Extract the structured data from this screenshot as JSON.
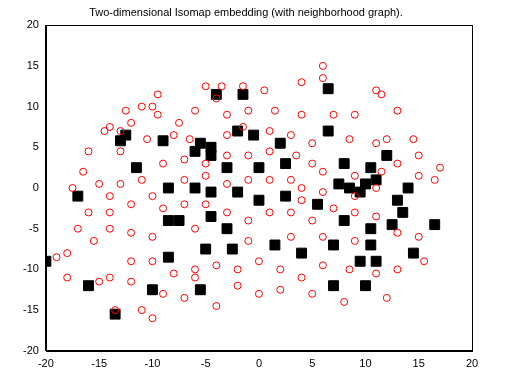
{
  "chart_data": {
    "type": "scatter",
    "title": "Two-dimensional Isomap embedding (with neighborhood graph).",
    "xlim": [
      -20,
      20
    ],
    "xticks": [
      -20,
      -15,
      -10,
      -5,
      0,
      5,
      10,
      15,
      20
    ],
    "ylim": [
      -20,
      20
    ],
    "yticks": [
      -20,
      -15,
      -10,
      -5,
      0,
      5,
      10,
      15,
      20
    ],
    "grid": false,
    "series": [
      {
        "color": "#ff0000",
        "marker": "circle",
        "values": [
          [
            6,
            15
          ],
          [
            4,
            13
          ],
          [
            6,
            13.5
          ],
          [
            11,
            12
          ],
          [
            11.5,
            11.5
          ],
          [
            -5,
            12.5
          ],
          [
            -3.5,
            12.5
          ],
          [
            -1.5,
            12.5
          ],
          [
            0.5,
            12
          ],
          [
            -4,
            11
          ],
          [
            -9.5,
            11.5
          ],
          [
            -10,
            10
          ],
          [
            -11,
            10
          ],
          [
            -12.5,
            9.5
          ],
          [
            -14,
            7.5
          ],
          [
            -14.5,
            7
          ],
          [
            -13,
            7
          ],
          [
            -12,
            8
          ],
          [
            -9.5,
            9
          ],
          [
            -7.5,
            8
          ],
          [
            -6,
            9.5
          ],
          [
            -3,
            9
          ],
          [
            -1,
            9.5
          ],
          [
            1.5,
            9.5
          ],
          [
            4,
            9
          ],
          [
            7,
            9
          ],
          [
            9,
            9
          ],
          [
            13,
            9.5
          ],
          [
            14.5,
            6
          ],
          [
            12,
            6
          ],
          [
            11,
            5.5
          ],
          [
            8.5,
            6
          ],
          [
            5,
            5.5
          ],
          [
            3,
            6.5
          ],
          [
            1,
            7
          ],
          [
            -1.5,
            7.5
          ],
          [
            -3,
            6.5
          ],
          [
            -6.5,
            6
          ],
          [
            -8,
            6.5
          ],
          [
            -10.5,
            6
          ],
          [
            -13,
            4.5
          ],
          [
            -16,
            4.5
          ],
          [
            -16.5,
            2
          ],
          [
            -15,
            0.5
          ],
          [
            -14,
            -1
          ],
          [
            -17.5,
            0
          ],
          [
            -13,
            0.5
          ],
          [
            -11,
            1
          ],
          [
            -9,
            3
          ],
          [
            -7,
            3.5
          ],
          [
            -5,
            3
          ],
          [
            -3,
            4
          ],
          [
            -1,
            4
          ],
          [
            1,
            4.5
          ],
          [
            3.5,
            4
          ],
          [
            5,
            3
          ],
          [
            6,
            2
          ],
          [
            9,
            1.5
          ],
          [
            11.5,
            2
          ],
          [
            15,
            1.5
          ],
          [
            16.5,
            1
          ],
          [
            17,
            2.5
          ],
          [
            15,
            4
          ],
          [
            13,
            3
          ],
          [
            11,
            0
          ],
          [
            9,
            -1
          ],
          [
            6,
            -0.5
          ],
          [
            4,
            0
          ],
          [
            3,
            1
          ],
          [
            1,
            1
          ],
          [
            -1,
            1
          ],
          [
            -3,
            0.5
          ],
          [
            -5,
            1.5
          ],
          [
            -7,
            1
          ],
          [
            -10,
            -1
          ],
          [
            -12,
            -2
          ],
          [
            -14,
            -3
          ],
          [
            -16,
            -3
          ],
          [
            -17,
            -5
          ],
          [
            -15.5,
            -6.5
          ],
          [
            -14,
            -5
          ],
          [
            -12,
            -5.5
          ],
          [
            -10,
            -6
          ],
          [
            -9,
            -2.5
          ],
          [
            -7,
            -2
          ],
          [
            -5,
            -2
          ],
          [
            -3,
            -3
          ],
          [
            -1,
            -4
          ],
          [
            1,
            -3
          ],
          [
            3,
            -3
          ],
          [
            5,
            -4
          ],
          [
            7,
            -2.5
          ],
          [
            9,
            -3
          ],
          [
            11,
            -3.5
          ],
          [
            13,
            -5.5
          ],
          [
            15,
            -6
          ],
          [
            15.5,
            -9
          ],
          [
            13,
            -10
          ],
          [
            11,
            -10.5
          ],
          [
            8.5,
            -10
          ],
          [
            6,
            -9.5
          ],
          [
            4,
            -11
          ],
          [
            2,
            -10
          ],
          [
            0,
            -9
          ],
          [
            -2,
            -10
          ],
          [
            -4,
            -9.5
          ],
          [
            -6,
            -10
          ],
          [
            -8,
            -10.5
          ],
          [
            -10,
            -9
          ],
          [
            -12,
            -9
          ],
          [
            -14,
            -11
          ],
          [
            -15,
            -11.5
          ],
          [
            -18,
            -8
          ],
          [
            -19,
            -8.5
          ],
          [
            -18,
            -11
          ],
          [
            -12,
            -11.5
          ],
          [
            -9,
            -13
          ],
          [
            -7,
            -13.5
          ],
          [
            -6,
            -11
          ],
          [
            -4,
            -14.5
          ],
          [
            -2,
            -12
          ],
          [
            0,
            -13
          ],
          [
            2,
            -12.5
          ],
          [
            5,
            -13
          ],
          [
            8,
            -14
          ],
          [
            12,
            -13.5
          ],
          [
            -10,
            -16
          ],
          [
            -11,
            -15
          ],
          [
            -13.5,
            -15
          ],
          [
            3,
            -6
          ],
          [
            6,
            -6
          ],
          [
            9,
            -6.5
          ],
          [
            -1,
            -6.5
          ],
          [
            4,
            -1.5
          ],
          [
            -6,
            -5
          ]
        ]
      },
      {
        "color": "#000000",
        "marker": "square",
        "values": [
          [
            -12.5,
            6.5
          ],
          [
            -13,
            5.8
          ],
          [
            -11.5,
            2.5
          ],
          [
            -9,
            5.8
          ],
          [
            -4,
            11.5
          ],
          [
            -1.5,
            11.5
          ],
          [
            6.5,
            12.2
          ],
          [
            -17,
            -1
          ],
          [
            -8.5,
            -4
          ],
          [
            -5.5,
            5.5
          ],
          [
            -6,
            4.5
          ],
          [
            -4.5,
            5
          ],
          [
            -4.5,
            4
          ],
          [
            -2,
            7
          ],
          [
            -0.5,
            6.5
          ],
          [
            2,
            5.5
          ],
          [
            -3,
            2.5
          ],
          [
            0,
            2.5
          ],
          [
            2.5,
            3
          ],
          [
            6.5,
            7
          ],
          [
            -8.5,
            0
          ],
          [
            -6,
            0
          ],
          [
            -4.5,
            -0.5
          ],
          [
            -2,
            -0.5
          ],
          [
            0,
            -1.5
          ],
          [
            2.5,
            -1
          ],
          [
            -7.5,
            -4
          ],
          [
            -4.5,
            -3.5
          ],
          [
            -3,
            -5
          ],
          [
            -8.5,
            -8.5
          ],
          [
            -5,
            -7.5
          ],
          [
            -5.5,
            -12.5
          ],
          [
            -10,
            -12.5
          ],
          [
            -13.5,
            -15.5
          ],
          [
            -16,
            -12
          ],
          [
            -20,
            -9
          ],
          [
            -2.5,
            -7.5
          ],
          [
            1.5,
            -7
          ],
          [
            4,
            -8
          ],
          [
            7,
            -7
          ],
          [
            10.5,
            -7
          ],
          [
            7,
            -12
          ],
          [
            10,
            -12
          ],
          [
            9.5,
            -9
          ],
          [
            11,
            -9
          ],
          [
            14.5,
            -8
          ],
          [
            16.5,
            -4.5
          ],
          [
            13.5,
            -3
          ],
          [
            12.5,
            -4.5
          ],
          [
            10.5,
            -5
          ],
          [
            13,
            -1.5
          ],
          [
            14,
            0
          ],
          [
            11,
            1
          ],
          [
            10.5,
            2.5
          ],
          [
            12,
            4
          ],
          [
            8,
            3
          ],
          [
            7.5,
            0.5
          ],
          [
            8.5,
            0
          ],
          [
            9.5,
            -0.5
          ],
          [
            10,
            0.5
          ],
          [
            5.5,
            -2
          ],
          [
            8,
            -4
          ]
        ]
      }
    ]
  }
}
